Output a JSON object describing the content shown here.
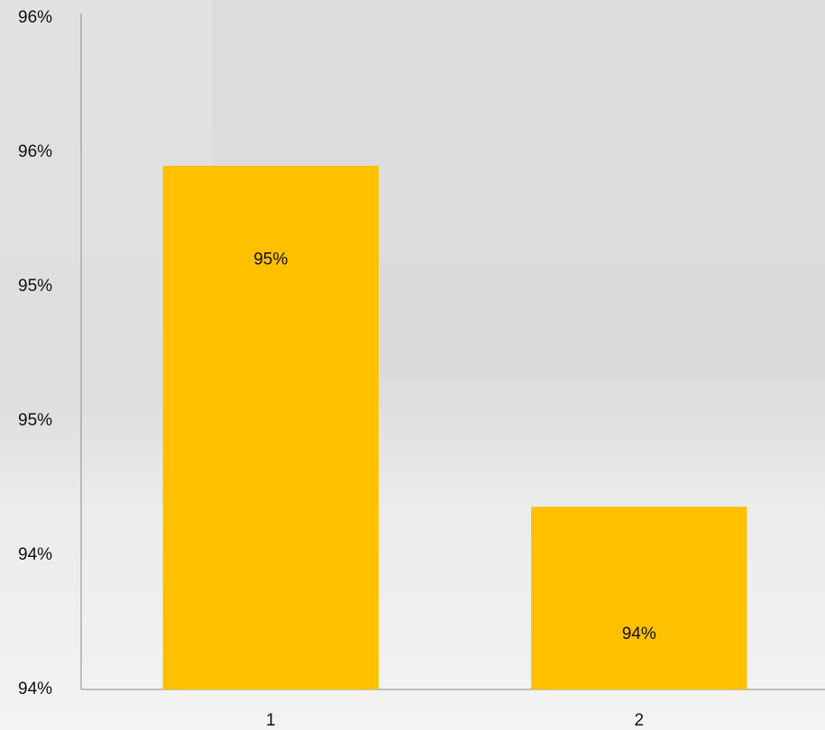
{
  "chart_data": {
    "type": "bar",
    "categories": [
      "1",
      "2"
    ],
    "values": [
      95.45,
      94.18
    ],
    "value_labels": [
      "95%",
      "94%"
    ],
    "color": "#ffc000",
    "ylim": [
      93.5,
      96.0
    ],
    "yticks": [
      {
        "value": 93.5,
        "label": "94%"
      },
      {
        "value": 94.0,
        "label": "94%"
      },
      {
        "value": 94.5,
        "label": "95%"
      },
      {
        "value": 95.0,
        "label": "95%"
      },
      {
        "value": 95.5,
        "label": "96%"
      },
      {
        "value": 96.0,
        "label": "96%"
      }
    ],
    "grid": false
  }
}
